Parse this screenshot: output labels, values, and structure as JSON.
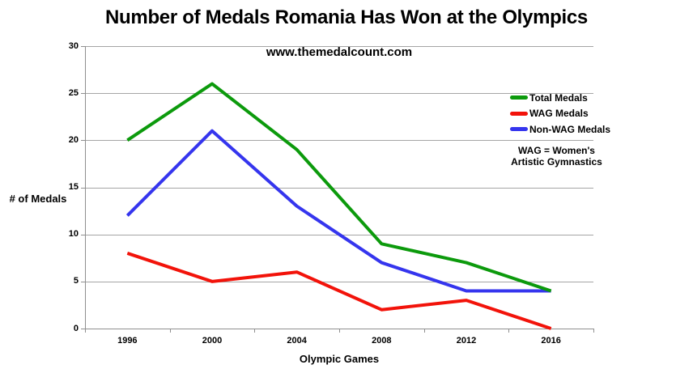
{
  "title": "Number of Medals Romania Has Won at the Olympics",
  "subtitle": "www.themedalcount.com",
  "legend_note": {
    "line1": "WAG = Women's",
    "line2": "Artistic Gymnastics"
  },
  "colors": {
    "background": "#ffffff",
    "grid": "#a5a5a5",
    "axis": "#8f8f8f",
    "text": "#000000"
  },
  "chart_data": {
    "type": "line",
    "title": "Number of Medals Romania Has Won at the Olympics",
    "subtitle": "www.themedalcount.com",
    "xlabel": "Olympic Games",
    "ylabel": "# of Medals",
    "categories": [
      "1996",
      "2000",
      "2004",
      "2008",
      "2012",
      "2016"
    ],
    "series": [
      {
        "name": "Total Medals",
        "color": "#0c9a0c",
        "values": [
          20,
          26,
          19,
          9,
          7,
          4
        ]
      },
      {
        "name": "WAG Medals",
        "color": "#f2130a",
        "values": [
          8,
          5,
          6,
          2,
          3,
          0
        ]
      },
      {
        "name": "Non-WAG Medals",
        "color": "#3535ee",
        "values": [
          12,
          21,
          13,
          7,
          4,
          4
        ]
      }
    ],
    "ylim": [
      0,
      30
    ],
    "yticks": [
      0,
      5,
      10,
      15,
      20,
      25,
      30
    ],
    "grid": true,
    "legend_position": "right-top",
    "annotation": "WAG = Women's Artistic Gymnastics",
    "line_width": 4
  }
}
